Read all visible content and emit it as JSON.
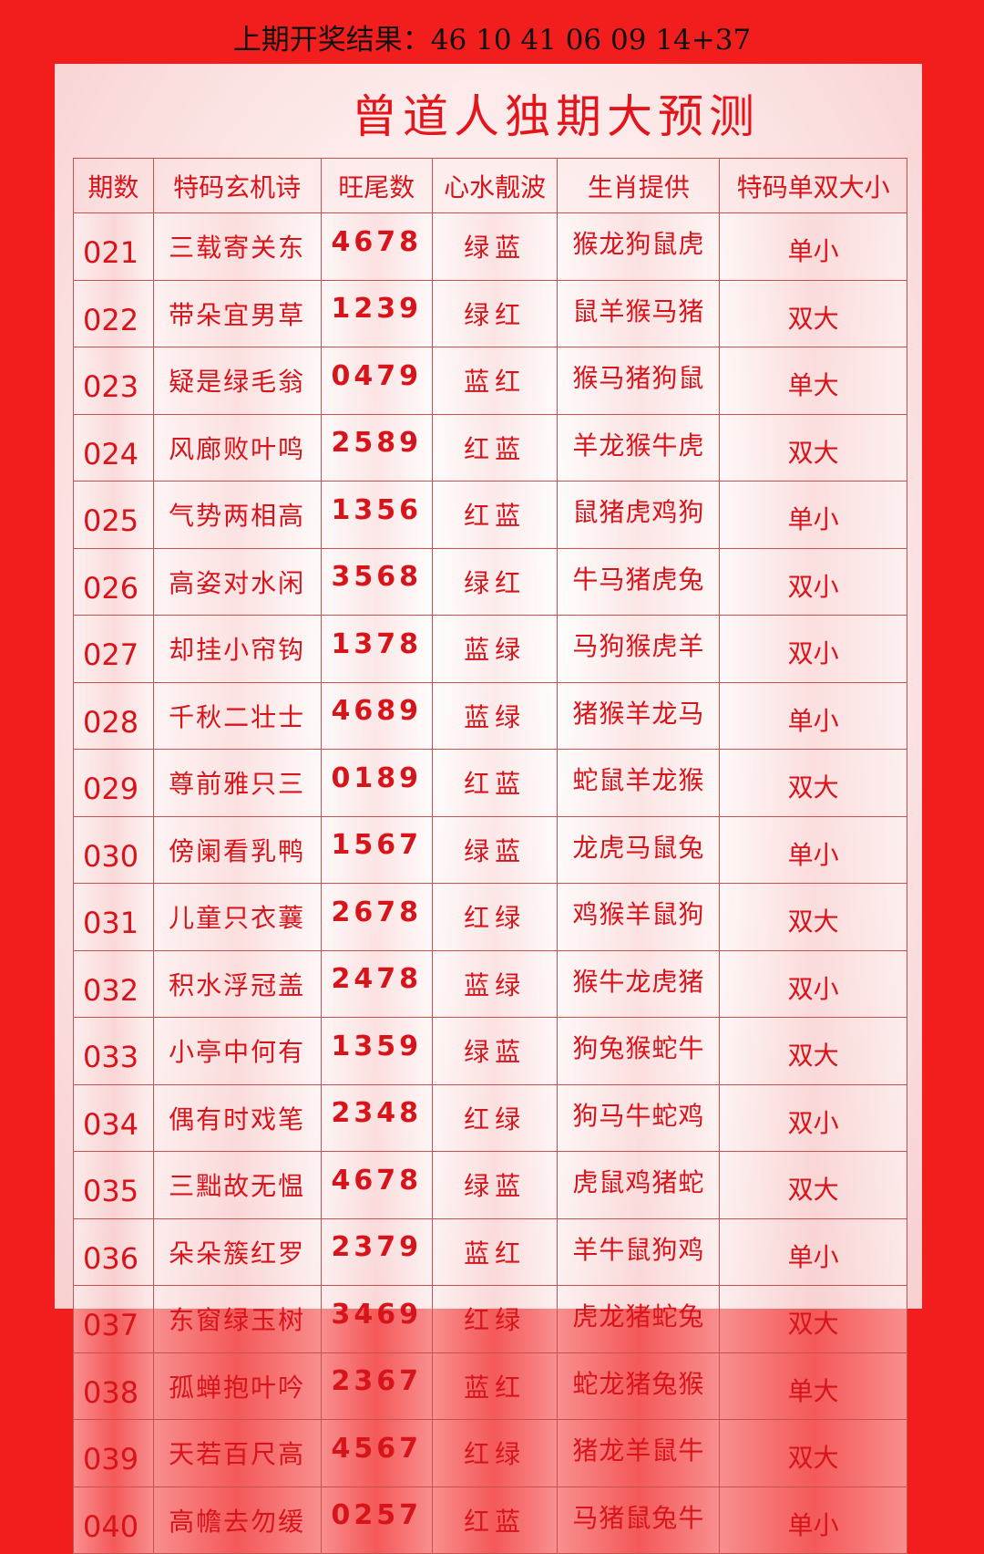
{
  "last_result": "上期开奖结果：46 10 41 06 09 14+37",
  "title": "曾道人独期大预测",
  "headers": [
    "期数",
    "特码玄机诗",
    "旺尾数",
    "心水靓波",
    "生肖提供",
    "特码单双大小"
  ],
  "rows": [
    [
      "021",
      "三载寄关东",
      "4678",
      "绿蓝",
      "猴龙狗鼠虎",
      "单小"
    ],
    [
      "022",
      "带朵宜男草",
      "1239",
      "绿红",
      "鼠羊猴马猪",
      "双大"
    ],
    [
      "023",
      "疑是绿毛翁",
      "0479",
      "蓝红",
      "猴马猪狗鼠",
      "单大"
    ],
    [
      "024",
      "风廊败叶鸣",
      "2589",
      "红蓝",
      "羊龙猴牛虎",
      "双大"
    ],
    [
      "025",
      "气势两相高",
      "1356",
      "红蓝",
      "鼠猪虎鸡狗",
      "单小"
    ],
    [
      "026",
      "高姿对水闲",
      "3568",
      "绿红",
      "牛马猪虎兔",
      "双小"
    ],
    [
      "027",
      "却挂小帘钩",
      "1378",
      "蓝绿",
      "马狗猴虎羊",
      "双小"
    ],
    [
      "028",
      "千秋二壮士",
      "4689",
      "蓝绿",
      "猪猴羊龙马",
      "单小"
    ],
    [
      "029",
      "尊前雅只三",
      "0189",
      "红蓝",
      "蛇鼠羊龙猴",
      "双大"
    ],
    [
      "030",
      "傍阑看乳鸭",
      "1567",
      "绿蓝",
      "龙虎马鼠兔",
      "单小"
    ],
    [
      "031",
      "儿童只衣蘘",
      "2678",
      "红绿",
      "鸡猴羊鼠狗",
      "双大"
    ],
    [
      "032",
      "积水浮冠盖",
      "2478",
      "蓝绿",
      "猴牛龙虎猪",
      "双小"
    ],
    [
      "033",
      "小亭中何有",
      "1359",
      "绿蓝",
      "狗兔猴蛇牛",
      "双大"
    ],
    [
      "034",
      "偶有时戏笔",
      "2348",
      "红绿",
      "狗马牛蛇鸡",
      "双小"
    ],
    [
      "035",
      "三黜故无愠",
      "4678",
      "绿蓝",
      "虎鼠鸡猪蛇",
      "双大"
    ],
    [
      "036",
      "朵朵簇红罗",
      "2379",
      "蓝红",
      "羊牛鼠狗鸡",
      "单小"
    ],
    [
      "037",
      "东窗绿玉树",
      "3469",
      "红绿",
      "虎龙猪蛇兔",
      "双大"
    ],
    [
      "038",
      "孤蝉抱叶吟",
      "2367",
      "蓝红",
      "蛇龙猪兔猴",
      "单大"
    ],
    [
      "039",
      "天若百尺高",
      "4567",
      "红绿",
      "猪龙羊鼠牛",
      "双大"
    ],
    [
      "040",
      "高幨去勿缓",
      "0257",
      "红蓝",
      "马猪鼠兔牛",
      "单小"
    ]
  ]
}
